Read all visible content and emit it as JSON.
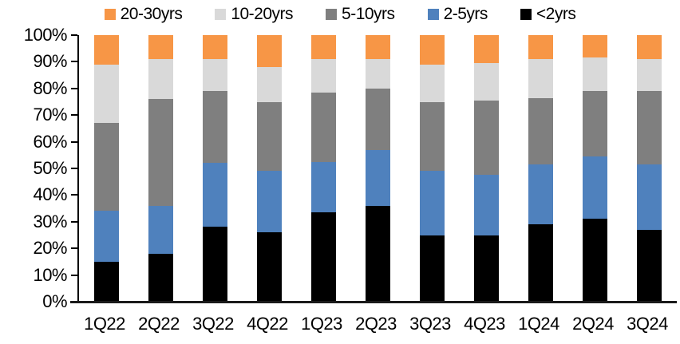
{
  "chart_data": {
    "type": "bar",
    "subtype": "stacked-100-percent",
    "title": "",
    "xlabel": "",
    "ylabel": "",
    "grid": false,
    "legend_position": "top",
    "legend_order": [
      "20-30yrs",
      "10-20yrs",
      "5-10yrs",
      "2-5yrs",
      "<2yrs"
    ],
    "stack_order": "bottom-to-top",
    "categories": [
      "1Q22",
      "2Q22",
      "3Q22",
      "4Q22",
      "1Q23",
      "2Q23",
      "3Q23",
      "4Q23",
      "1Q24",
      "2Q24",
      "3Q24"
    ],
    "series": [
      {
        "name": "<2yrs",
        "color": "#000000",
        "values": [
          15,
          18,
          28,
          26,
          33.5,
          36,
          25,
          25,
          29,
          31,
          27
        ]
      },
      {
        "name": "2-5yrs",
        "color": "#4F81BD",
        "values": [
          19,
          18,
          24,
          23,
          19,
          21,
          24,
          22.5,
          22.5,
          23.5,
          24.5
        ]
      },
      {
        "name": "5-10yrs",
        "color": "#7F7F7F",
        "values": [
          33,
          40,
          27,
          26,
          26,
          23,
          26,
          28,
          25,
          24.5,
          27.5
        ]
      },
      {
        "name": "10-20yrs",
        "color": "#D9D9D9",
        "values": [
          22,
          15,
          12,
          13,
          12.5,
          11,
          14,
          14,
          14.5,
          12.5,
          12
        ]
      },
      {
        "name": "20-30yrs",
        "color": "#F79646",
        "values": [
          11,
          9,
          9,
          12,
          9,
          9,
          11,
          10.5,
          9,
          8.5,
          9
        ]
      }
    ],
    "y_axis": {
      "min": 0,
      "max": 100,
      "step": 10,
      "format": "percent",
      "tick_labels": [
        "0%",
        "10%",
        "20%",
        "30%",
        "40%",
        "50%",
        "60%",
        "70%",
        "80%",
        "90%",
        "100%"
      ]
    },
    "colors": {
      "axis": "#000000",
      "background": "#ffffff"
    }
  }
}
